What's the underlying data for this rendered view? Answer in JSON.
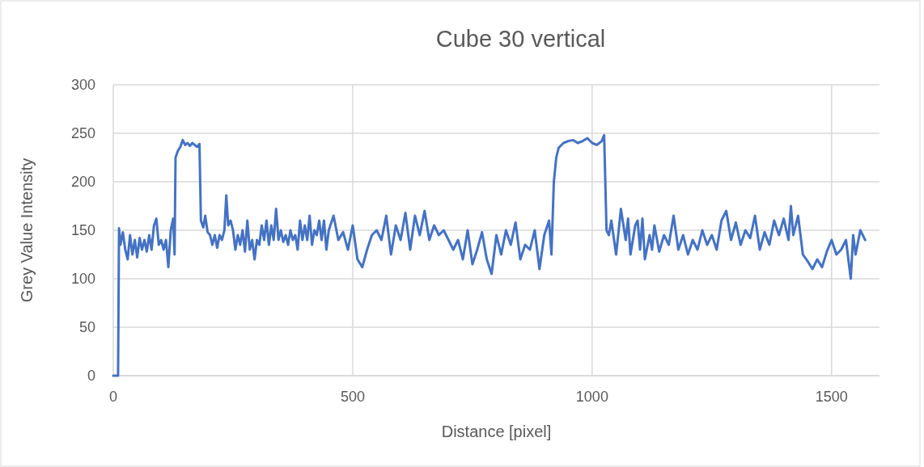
{
  "chart_data": {
    "type": "line",
    "title": "Cube 30 vertical",
    "xlabel": "Distance [pixel]",
    "ylabel": "Grey Value Intensity",
    "xlim": [
      0,
      1600
    ],
    "xticks": [
      0,
      500,
      1000,
      1500
    ],
    "ylim": [
      0,
      300
    ],
    "yticks": [
      0,
      50,
      100,
      150,
      200,
      250,
      300
    ],
    "grid": true,
    "series": [
      {
        "color": "#4472c4",
        "x": [
          0,
          5,
          10,
          12,
          15,
          20,
          25,
          30,
          35,
          40,
          45,
          50,
          55,
          60,
          65,
          70,
          75,
          80,
          85,
          90,
          95,
          100,
          105,
          110,
          115,
          120,
          125,
          128,
          130,
          135,
          140,
          145,
          150,
          155,
          160,
          165,
          170,
          175,
          180,
          183,
          188,
          192,
          197,
          202,
          207,
          212,
          217,
          222,
          227,
          232,
          236,
          240,
          245,
          250,
          255,
          260,
          265,
          270,
          275,
          280,
          285,
          290,
          295,
          300,
          305,
          310,
          315,
          320,
          325,
          330,
          335,
          340,
          345,
          350,
          355,
          360,
          365,
          370,
          375,
          380,
          385,
          390,
          395,
          400,
          405,
          410,
          415,
          420,
          425,
          430,
          435,
          440,
          445,
          450,
          460,
          470,
          480,
          490,
          500,
          510,
          520,
          530,
          540,
          550,
          560,
          570,
          580,
          590,
          600,
          610,
          620,
          630,
          640,
          650,
          660,
          670,
          680,
          690,
          700,
          710,
          720,
          730,
          740,
          750,
          760,
          770,
          780,
          790,
          800,
          810,
          820,
          830,
          840,
          850,
          860,
          870,
          880,
          890,
          900,
          910,
          915,
          920,
          925,
          930,
          940,
          950,
          960,
          970,
          980,
          990,
          1000,
          1010,
          1020,
          1025,
          1030,
          1035,
          1040,
          1050,
          1055,
          1060,
          1070,
          1075,
          1080,
          1090,
          1095,
          1100,
          1105,
          1110,
          1120,
          1125,
          1130,
          1140,
          1150,
          1160,
          1170,
          1180,
          1190,
          1200,
          1210,
          1220,
          1230,
          1240,
          1250,
          1260,
          1270,
          1280,
          1290,
          1300,
          1310,
          1320,
          1330,
          1340,
          1350,
          1360,
          1370,
          1380,
          1390,
          1400,
          1410,
          1415,
          1420,
          1430,
          1440,
          1450,
          1460,
          1470,
          1480,
          1490,
          1500,
          1510,
          1520,
          1530,
          1540,
          1545,
          1550,
          1560,
          1570
        ],
        "values": [
          0,
          0,
          0,
          152,
          135,
          148,
          130,
          120,
          145,
          125,
          140,
          122,
          142,
          130,
          140,
          128,
          145,
          130,
          155,
          162,
          135,
          140,
          130,
          140,
          112,
          150,
          162,
          125,
          225,
          232,
          236,
          243,
          238,
          240,
          237,
          240,
          238,
          236,
          239,
          160,
          153,
          165,
          148,
          145,
          135,
          145,
          132,
          145,
          140,
          150,
          186,
          155,
          160,
          150,
          130,
          145,
          135,
          150,
          128,
          160,
          130,
          140,
          120,
          140,
          135,
          155,
          140,
          160,
          135,
          155,
          140,
          172,
          140,
          150,
          138,
          145,
          135,
          150,
          140,
          145,
          130,
          160,
          140,
          155,
          140,
          165,
          135,
          150,
          145,
          160,
          140,
          160,
          130,
          150,
          165,
          140,
          148,
          130,
          155,
          120,
          112,
          130,
          145,
          150,
          140,
          165,
          125,
          155,
          140,
          168,
          130,
          165,
          145,
          170,
          140,
          155,
          145,
          150,
          140,
          130,
          140,
          120,
          150,
          115,
          130,
          148,
          120,
          105,
          145,
          125,
          150,
          135,
          158,
          120,
          135,
          130,
          150,
          110,
          145,
          160,
          125,
          200,
          225,
          235,
          240,
          242,
          243,
          240,
          242,
          245,
          240,
          238,
          242,
          248,
          150,
          145,
          160,
          125,
          148,
          172,
          140,
          162,
          125,
          155,
          160,
          130,
          162,
          120,
          145,
          130,
          155,
          128,
          145,
          135,
          165,
          130,
          145,
          125,
          140,
          130,
          150,
          135,
          145,
          130,
          160,
          170,
          140,
          158,
          135,
          150,
          142,
          165,
          130,
          148,
          135,
          160,
          145,
          162,
          140,
          175,
          145,
          165,
          125,
          118,
          110,
          120,
          112,
          128,
          140,
          125,
          130,
          140,
          100,
          145,
          125,
          150,
          140
        ]
      }
    ]
  }
}
